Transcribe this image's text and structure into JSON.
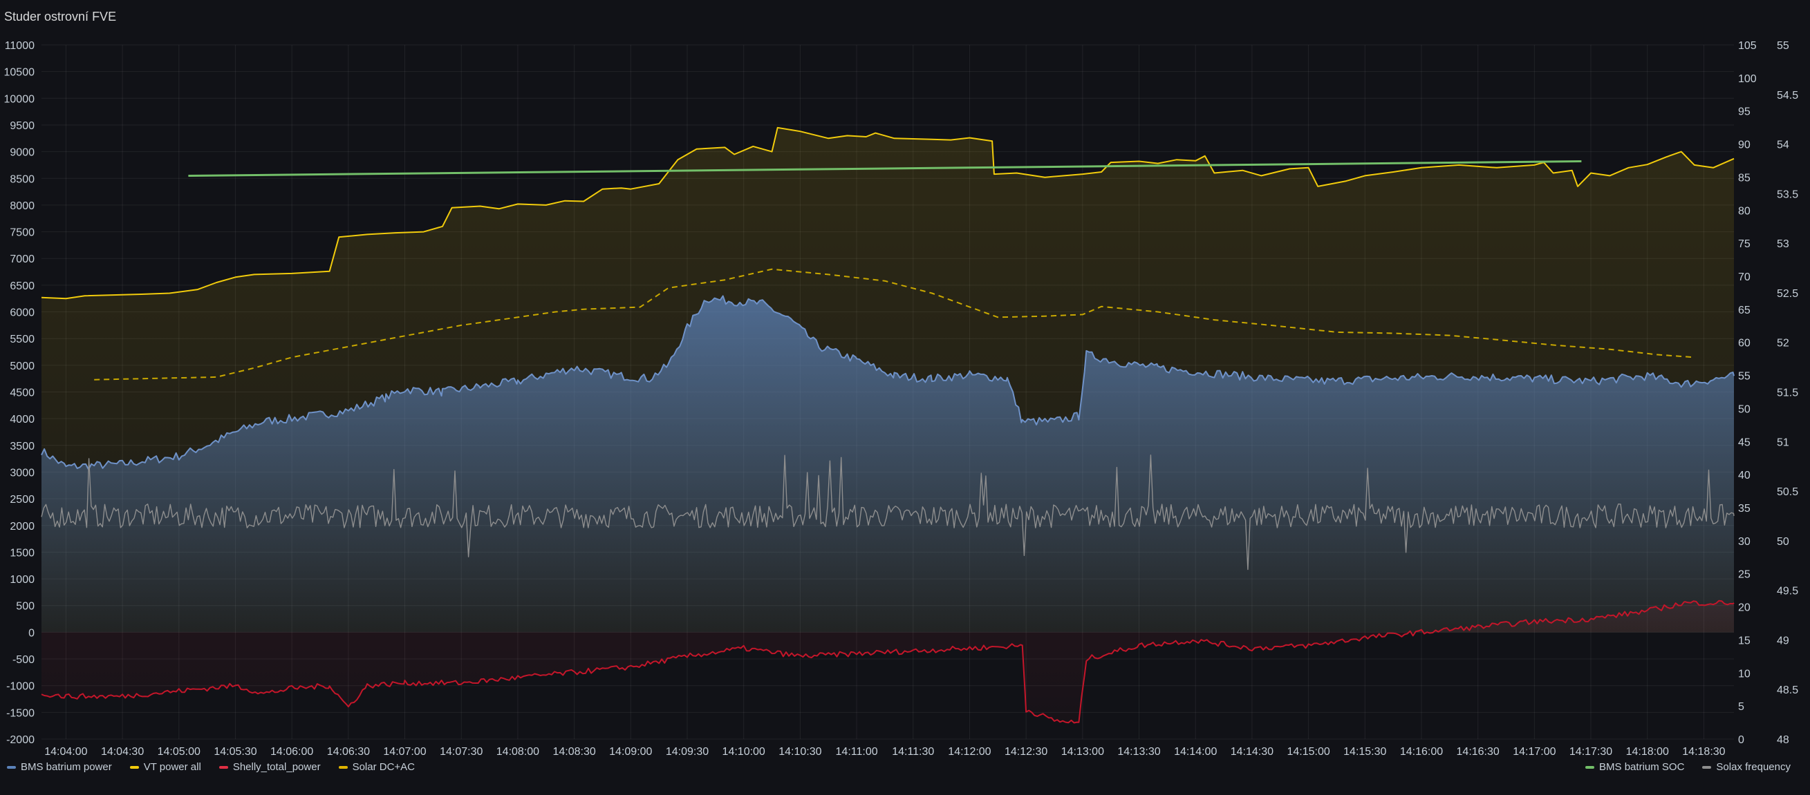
{
  "panel": {
    "title": "Studer ostrovní FVE"
  },
  "colors": {
    "bms_power": "#5b82ba",
    "vt_power": "#f2cc0c",
    "shelly": "#e02f44",
    "solar": "#e0b400",
    "soc": "#73bf69",
    "frequency": "#8e8e8e"
  },
  "legend": {
    "left": [
      {
        "label": "BMS batrium power",
        "color": "#5b82ba"
      },
      {
        "label": "VT power all",
        "color": "#f2cc0c"
      },
      {
        "label": "Shelly_total_power",
        "color": "#e02f44"
      },
      {
        "label": "Solar DC+AC",
        "color": "#e0b400"
      }
    ],
    "right": [
      {
        "label": "BMS batrium SOC",
        "color": "#73bf69"
      },
      {
        "label": "Solax frequency",
        "color": "#8e8e8e"
      }
    ]
  },
  "chart_data": {
    "type": "line",
    "x_ticks": [
      "14:04:00",
      "14:04:30",
      "14:05:00",
      "14:05:30",
      "14:06:00",
      "14:06:30",
      "14:07:00",
      "14:07:30",
      "14:08:00",
      "14:08:30",
      "14:09:00",
      "14:09:30",
      "14:10:00",
      "14:10:30",
      "14:11:00",
      "14:11:30",
      "14:12:00",
      "14:12:30",
      "14:13:00",
      "14:13:30",
      "14:14:00",
      "14:14:30",
      "14:15:00",
      "14:15:30",
      "14:16:00",
      "14:16:30",
      "14:17:00",
      "14:17:30",
      "14:18:00",
      "14:18:30"
    ],
    "time_range": [
      "14:03:47",
      "14:18:46"
    ],
    "y_left": {
      "min": -2000,
      "max": 11000,
      "ticks": [
        "11000",
        "10500",
        "10000",
        "9500",
        "9000",
        "8500",
        "8000",
        "7500",
        "7000",
        "6500",
        "6000",
        "5500",
        "5000",
        "4500",
        "4000",
        "3500",
        "3000",
        "2500",
        "2000",
        "1500",
        "1000",
        "500",
        "0",
        "-500",
        "-1000",
        "-1500",
        "-2000"
      ]
    },
    "y_right1": {
      "min": 0,
      "max": 105,
      "ticks": [
        "105",
        "100",
        "95",
        "90",
        "85",
        "80",
        "75",
        "70",
        "65",
        "60",
        "55",
        "50",
        "45",
        "40",
        "35",
        "30",
        "25",
        "20",
        "15",
        "10",
        "5",
        "0"
      ]
    },
    "y_right2": {
      "min": 48,
      "max": 55,
      "ticks": [
        "55",
        "54.5",
        "54",
        "53.5",
        "53",
        "52.5",
        "52",
        "51.5",
        "51",
        "50.5",
        "50",
        "49.5",
        "49",
        "48.5",
        "48"
      ]
    },
    "series": [
      {
        "name": "VT power all",
        "axis": "left",
        "style": "solid",
        "fill": true,
        "points": [
          [
            "14:03:47",
            6270
          ],
          [
            "14:04:00",
            6250
          ],
          [
            "14:04:10",
            6300
          ],
          [
            "14:04:40",
            6330
          ],
          [
            "14:04:55",
            6350
          ],
          [
            "14:05:10",
            6420
          ],
          [
            "14:05:20",
            6550
          ],
          [
            "14:05:30",
            6650
          ],
          [
            "14:05:40",
            6700
          ],
          [
            "14:06:00",
            6720
          ],
          [
            "14:06:20",
            6760
          ],
          [
            "14:06:25",
            7400
          ],
          [
            "14:06:40",
            7450
          ],
          [
            "14:06:55",
            7480
          ],
          [
            "14:07:10",
            7500
          ],
          [
            "14:07:20",
            7600
          ],
          [
            "14:07:25",
            7950
          ],
          [
            "14:07:40",
            7980
          ],
          [
            "14:07:50",
            7930
          ],
          [
            "14:08:00",
            8020
          ],
          [
            "14:08:15",
            8000
          ],
          [
            "14:08:25",
            8080
          ],
          [
            "14:08:35",
            8070
          ],
          [
            "14:08:45",
            8300
          ],
          [
            "14:08:55",
            8320
          ],
          [
            "14:09:00",
            8300
          ],
          [
            "14:09:15",
            8400
          ],
          [
            "14:09:25",
            8850
          ],
          [
            "14:09:35",
            9050
          ],
          [
            "14:09:50",
            9080
          ],
          [
            "14:09:55",
            8950
          ],
          [
            "14:10:05",
            9100
          ],
          [
            "14:10:15",
            9000
          ],
          [
            "14:10:18",
            9450
          ],
          [
            "14:10:30",
            9380
          ],
          [
            "14:10:45",
            9250
          ],
          [
            "14:10:55",
            9300
          ],
          [
            "14:11:05",
            9280
          ],
          [
            "14:11:10",
            9350
          ],
          [
            "14:11:20",
            9250
          ],
          [
            "14:11:40",
            9230
          ],
          [
            "14:11:50",
            9220
          ],
          [
            "14:12:00",
            9260
          ],
          [
            "14:12:12",
            9200
          ],
          [
            "14:12:13",
            8580
          ],
          [
            "14:12:25",
            8600
          ],
          [
            "14:12:40",
            8520
          ],
          [
            "14:13:00",
            8580
          ],
          [
            "14:13:10",
            8620
          ],
          [
            "14:13:15",
            8800
          ],
          [
            "14:13:30",
            8820
          ],
          [
            "14:13:40",
            8780
          ],
          [
            "14:13:50",
            8850
          ],
          [
            "14:14:00",
            8830
          ],
          [
            "14:14:05",
            8920
          ],
          [
            "14:14:10",
            8600
          ],
          [
            "14:14:25",
            8650
          ],
          [
            "14:14:35",
            8550
          ],
          [
            "14:14:50",
            8680
          ],
          [
            "14:15:00",
            8700
          ],
          [
            "14:15:05",
            8350
          ],
          [
            "14:15:20",
            8450
          ],
          [
            "14:15:30",
            8550
          ],
          [
            "14:15:45",
            8620
          ],
          [
            "14:16:00",
            8700
          ],
          [
            "14:16:20",
            8750
          ],
          [
            "14:16:40",
            8700
          ],
          [
            "14:17:00",
            8750
          ],
          [
            "14:17:05",
            8800
          ],
          [
            "14:17:10",
            8600
          ],
          [
            "14:17:20",
            8650
          ],
          [
            "14:17:23",
            8350
          ],
          [
            "14:17:30",
            8600
          ],
          [
            "14:17:40",
            8550
          ],
          [
            "14:17:50",
            8700
          ],
          [
            "14:18:00",
            8760
          ],
          [
            "14:18:10",
            8900
          ],
          [
            "14:18:18",
            9000
          ],
          [
            "14:18:25",
            8750
          ],
          [
            "14:18:35",
            8700
          ],
          [
            "14:18:46",
            8870
          ]
        ]
      },
      {
        "name": "Solar DC+AC",
        "axis": "left",
        "style": "dashed",
        "fill": false,
        "points": [
          [
            "14:04:15",
            4730
          ],
          [
            "14:05:20",
            4780
          ],
          [
            "14:05:40",
            4950
          ],
          [
            "14:06:00",
            5150
          ],
          [
            "14:06:30",
            5350
          ],
          [
            "14:07:00",
            5550
          ],
          [
            "14:07:30",
            5750
          ],
          [
            "14:08:00",
            5900
          ],
          [
            "14:08:20",
            6000
          ],
          [
            "14:08:35",
            6050
          ],
          [
            "14:09:05",
            6090
          ],
          [
            "14:09:20",
            6450
          ],
          [
            "14:09:50",
            6600
          ],
          [
            "14:10:15",
            6800
          ],
          [
            "14:10:45",
            6700
          ],
          [
            "14:11:15",
            6580
          ],
          [
            "14:11:40",
            6350
          ],
          [
            "14:12:15",
            5900
          ],
          [
            "14:12:40",
            5920
          ],
          [
            "14:13:00",
            5950
          ],
          [
            "14:13:10",
            6100
          ],
          [
            "14:13:40",
            6000
          ],
          [
            "14:14:10",
            5850
          ],
          [
            "14:14:40",
            5750
          ],
          [
            "14:15:15",
            5620
          ],
          [
            "14:15:45",
            5600
          ],
          [
            "14:16:15",
            5560
          ],
          [
            "14:16:40",
            5480
          ],
          [
            "14:17:10",
            5380
          ],
          [
            "14:17:40",
            5300
          ],
          [
            "14:18:05",
            5200
          ],
          [
            "14:18:25",
            5150
          ]
        ]
      },
      {
        "name": "BMS batrium SOC",
        "axis": "right1",
        "style": "solid",
        "fill": false,
        "points": [
          [
            "14:05:05",
            85.2
          ],
          [
            "14:17:25",
            87.4
          ]
        ]
      },
      {
        "name": "BMS batrium power",
        "axis": "left",
        "style": "solid",
        "fill": true,
        "noise": 80,
        "points": [
          [
            "14:03:47",
            3400
          ],
          [
            "14:04:00",
            3100
          ],
          [
            "14:04:30",
            3150
          ],
          [
            "14:05:00",
            3300
          ],
          [
            "14:05:15",
            3500
          ],
          [
            "14:05:30",
            3750
          ],
          [
            "14:05:45",
            3950
          ],
          [
            "14:06:00",
            4000
          ],
          [
            "14:06:30",
            4150
          ],
          [
            "14:06:50",
            4400
          ],
          [
            "14:07:00",
            4550
          ],
          [
            "14:07:20",
            4500
          ],
          [
            "14:07:40",
            4600
          ],
          [
            "14:08:00",
            4700
          ],
          [
            "14:08:30",
            4950
          ],
          [
            "14:08:55",
            4800
          ],
          [
            "14:09:10",
            4750
          ],
          [
            "14:09:20",
            5000
          ],
          [
            "14:09:30",
            5700
          ],
          [
            "14:09:40",
            6250
          ],
          [
            "14:09:55",
            6200
          ],
          [
            "14:10:10",
            6150
          ],
          [
            "14:10:25",
            5850
          ],
          [
            "14:10:40",
            5350
          ],
          [
            "14:11:00",
            5100
          ],
          [
            "14:11:20",
            4800
          ],
          [
            "14:11:40",
            4750
          ],
          [
            "14:12:00",
            4820
          ],
          [
            "14:12:20",
            4750
          ],
          [
            "14:12:28",
            3950
          ],
          [
            "14:12:45",
            3950
          ],
          [
            "14:12:58",
            4050
          ],
          [
            "14:13:02",
            5200
          ],
          [
            "14:13:20",
            5050
          ],
          [
            "14:13:40",
            4950
          ],
          [
            "14:14:10",
            4850
          ],
          [
            "14:14:40",
            4750
          ],
          [
            "14:15:10",
            4700
          ],
          [
            "14:15:40",
            4750
          ],
          [
            "14:16:20",
            4800
          ],
          [
            "14:17:00",
            4750
          ],
          [
            "14:17:30",
            4700
          ],
          [
            "14:18:00",
            4800
          ],
          [
            "14:18:20",
            4650
          ],
          [
            "14:18:46",
            4800
          ]
        ]
      },
      {
        "name": "Solax frequency",
        "axis": "right2",
        "style": "solid",
        "fill": false,
        "noise": 0.12,
        "points": [
          [
            "14:03:47",
            50.25
          ],
          [
            "14:18:46",
            50.25
          ]
        ]
      },
      {
        "name": "Shelly_total_power",
        "axis": "left",
        "style": "solid",
        "fill": true,
        "noise": 50,
        "points": [
          [
            "14:03:47",
            -1150
          ],
          [
            "14:04:00",
            -1200
          ],
          [
            "14:04:30",
            -1200
          ],
          [
            "14:05:00",
            -1100
          ],
          [
            "14:05:30",
            -1000
          ],
          [
            "14:05:45",
            -1150
          ],
          [
            "14:06:00",
            -1050
          ],
          [
            "14:06:20",
            -1000
          ],
          [
            "14:06:30",
            -1400
          ],
          [
            "14:06:40",
            -1000
          ],
          [
            "14:07:00",
            -950
          ],
          [
            "14:07:30",
            -950
          ],
          [
            "14:08:00",
            -850
          ],
          [
            "14:08:30",
            -750
          ],
          [
            "14:09:00",
            -650
          ],
          [
            "14:09:30",
            -450
          ],
          [
            "14:10:00",
            -300
          ],
          [
            "14:10:30",
            -450
          ],
          [
            "14:11:00",
            -400
          ],
          [
            "14:11:30",
            -350
          ],
          [
            "14:12:00",
            -300
          ],
          [
            "14:12:28",
            -250
          ],
          [
            "14:12:30",
            -1450
          ],
          [
            "14:12:45",
            -1650
          ],
          [
            "14:12:58",
            -1700
          ],
          [
            "14:13:02",
            -500
          ],
          [
            "14:13:30",
            -250
          ],
          [
            "14:14:00",
            -150
          ],
          [
            "14:14:30",
            -300
          ],
          [
            "14:15:00",
            -250
          ],
          [
            "14:15:30",
            -100
          ],
          [
            "14:16:00",
            0
          ],
          [
            "14:16:30",
            100
          ],
          [
            "14:17:00",
            200
          ],
          [
            "14:17:30",
            250
          ],
          [
            "14:18:00",
            400
          ],
          [
            "14:18:20",
            550
          ],
          [
            "14:18:46",
            550
          ]
        ]
      }
    ]
  }
}
